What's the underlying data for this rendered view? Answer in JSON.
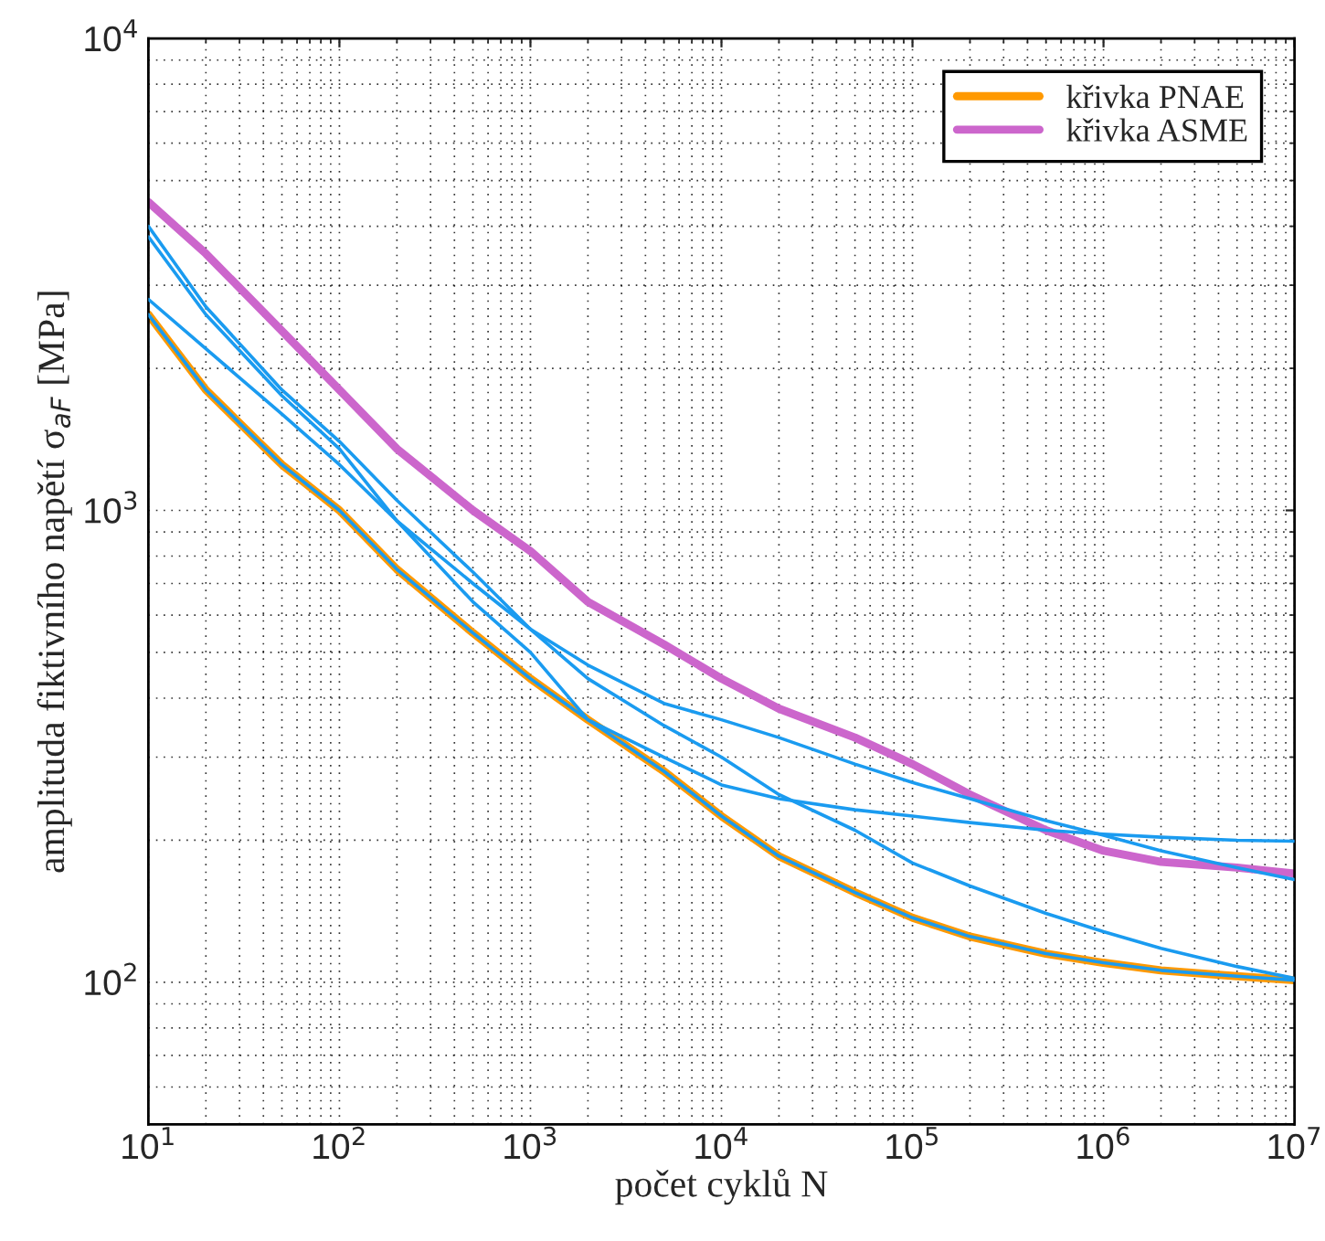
{
  "chart_data": {
    "type": "line",
    "xlabel": "počet cyklů N",
    "ylabel": "amplituda fiktivního napětí σ$_{aF}$ [MPa]",
    "log": "xy",
    "grid": true,
    "legend": "top right",
    "xlim": [
      10,
      10000000
    ],
    "ylim": [
      50,
      10000
    ],
    "xticks": [
      {
        "value": 10,
        "label": "10$^{1}$"
      },
      {
        "value": 100,
        "label": "10$^{2}$"
      },
      {
        "value": 1000,
        "label": "10$^{3}$"
      },
      {
        "value": 10000,
        "label": "10$^{4}$"
      },
      {
        "value": 100000,
        "label": "10$^{5}$"
      },
      {
        "value": 1000000,
        "label": "10$^{6}$"
      },
      {
        "value": 10000000,
        "label": "10$^{7}$"
      }
    ],
    "yticks": [
      {
        "value": 100,
        "label": "10$^{2}$"
      },
      {
        "value": 1000,
        "label": "10$^{3}$"
      },
      {
        "value": 10000,
        "label": "10$^{4}$"
      }
    ],
    "x": [
      10,
      20,
      50,
      100,
      200,
      500,
      1000,
      2000,
      5000,
      10000,
      20000,
      50000,
      100000,
      200000,
      500000,
      1000000,
      2000000,
      5000000,
      10000000
    ],
    "series": [
      {
        "name": "křivka PNAE",
        "color": "#ff9900",
        "values": [
          2600,
          1800,
          1250,
          1000,
          750,
          550,
          440,
          360,
          280,
          225,
          185,
          155,
          137,
          125,
          115,
          110,
          106,
          103,
          101
        ]
      },
      {
        "name": "křivka ASME",
        "color": "#cc66cc",
        "values": [
          4500,
          3500,
          2400,
          1800,
          1350,
          1000,
          820,
          640,
          520,
          440,
          380,
          330,
          290,
          250,
          210,
          190,
          180,
          175,
          170
        ]
      },
      {
        "color": "#1a9bf0",
        "values": [
          2600,
          1800,
          1250,
          1000,
          750,
          550,
          440,
          360,
          280,
          225,
          185,
          155,
          137,
          125,
          115,
          110,
          106,
          103,
          101
        ]
      },
      {
        "color": "#1a9bf0",
        "values": [
          4000,
          2700,
          1800,
          1400,
          1050,
          740,
          560,
          440,
          350,
          300,
          250,
          210,
          179,
          160,
          140,
          128,
          118,
          108,
          102
        ]
      },
      {
        "color": "#1a9bf0",
        "values": [
          3800,
          2600,
          1750,
          1350,
          950,
          640,
          500,
          360,
          300,
          262,
          245,
          232,
          225,
          218,
          210,
          206,
          203,
          200,
          199
        ]
      },
      {
        "color": "#1a9bf0",
        "values": [
          2800,
          2200,
          1600,
          1250,
          950,
          700,
          560,
          470,
          390,
          360,
          330,
          290,
          265,
          245,
          220,
          205,
          190,
          175,
          165
        ]
      }
    ]
  }
}
